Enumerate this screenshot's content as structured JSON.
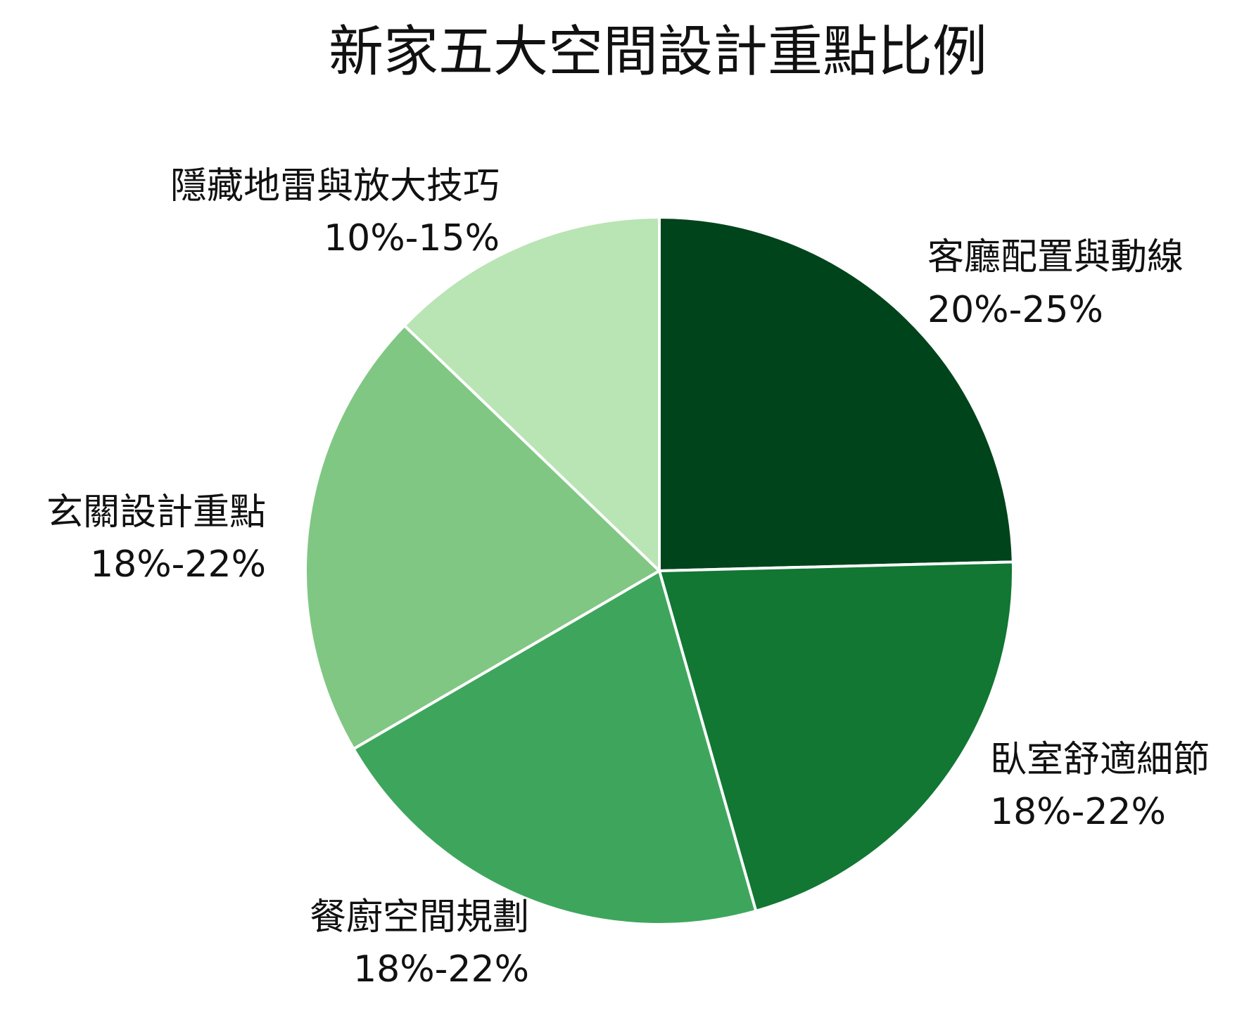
{
  "chart_data": {
    "type": "pie",
    "title": "新家五大空間設計重點比例",
    "start_angle_deg": 0,
    "direction": "clockwise",
    "slices": [
      {
        "name": "客廳配置與動線",
        "value_text": "20%-25%",
        "value": 24.6,
        "color": "#00441b"
      },
      {
        "name": "臥室舒適細節",
        "value_text": "18%-22%",
        "value": 21.0,
        "color": "#117733"
      },
      {
        "name": "餐廚空間規劃",
        "value_text": "18%-22%",
        "value": 21.0,
        "color": "#3ea65c"
      },
      {
        "name": "玄關設計重點",
        "value_text": "18%-22%",
        "value": 20.6,
        "color": "#80c783"
      },
      {
        "name": "隱藏地雷與放大技巧",
        "value_text": "10%-15%",
        "value": 12.8,
        "color": "#b9e4b4"
      }
    ]
  }
}
